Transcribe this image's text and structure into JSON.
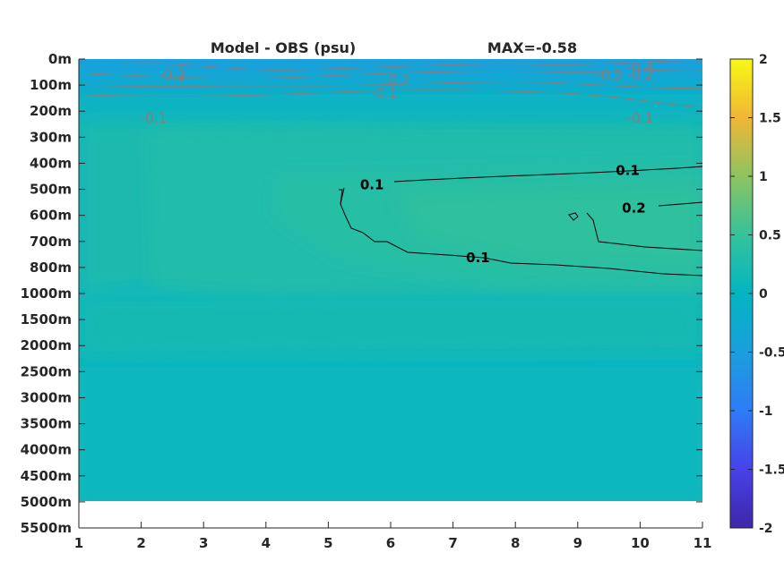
{
  "chart_data": {
    "type": "heatmap",
    "title": "Model - OBS (psu)",
    "max_label": "MAX=-0.58",
    "xlim": [
      1,
      11
    ],
    "x_ticks": [
      "1",
      "2",
      "3",
      "4",
      "5",
      "6",
      "7",
      "8",
      "9",
      "10",
      "11"
    ],
    "y_ticks": [
      "0m",
      "100m",
      "200m",
      "300m",
      "400m",
      "500m",
      "600m",
      "700m",
      "800m",
      "1000m",
      "1500m",
      "2000m",
      "2500m",
      "3000m",
      "3500m",
      "4000m",
      "4500m",
      "5000m",
      "5500m"
    ],
    "data_bottom": "5000m",
    "colorbar": {
      "min": -2,
      "max": 2,
      "ticks": [
        "2",
        "1.5",
        "1",
        "0.5",
        "0",
        "-0.5",
        "-1",
        "-1.5",
        "-2"
      ],
      "colormap": "parula"
    },
    "contour_labels": [
      "-0.4",
      "-0.3",
      "-0.2",
      "-0.1",
      "0.1",
      "0.2"
    ],
    "labels": [
      {
        "text": "-0.2",
        "x": 2.5,
        "depth": "100m",
        "color": "#8a7c7c"
      },
      {
        "text": "-0.1",
        "x": 2.2,
        "depth": "200m",
        "color": "#8a7c7c"
      },
      {
        "text": "-0.2",
        "x": 6.1,
        "depth": "100m",
        "color": "#8a7c7c"
      },
      {
        "text": "-0.1",
        "x": 5.9,
        "depth": "100m",
        "color": "#8a7c7c"
      },
      {
        "text": "-0.4",
        "x": 10.0,
        "depth": "0m",
        "color": "#8a7c7c"
      },
      {
        "text": "-0.3",
        "x": 9.5,
        "depth": "100m",
        "color": "#8a7c7c"
      },
      {
        "text": "-0.2",
        "x": 10.0,
        "depth": "100m",
        "color": "#8a7c7c"
      },
      {
        "text": "-0.1",
        "x": 10.0,
        "depth": "200m",
        "color": "#8a7c7c"
      },
      {
        "text": "0.1",
        "x": 5.7,
        "depth": "500m",
        "color": "#000000"
      },
      {
        "text": "0.1",
        "x": 9.8,
        "depth": "400m",
        "color": "#000000"
      },
      {
        "text": "0.2",
        "x": 9.9,
        "depth": "600m",
        "color": "#000000"
      },
      {
        "text": "0.1",
        "x": 7.4,
        "depth": "800m",
        "color": "#000000"
      }
    ]
  }
}
